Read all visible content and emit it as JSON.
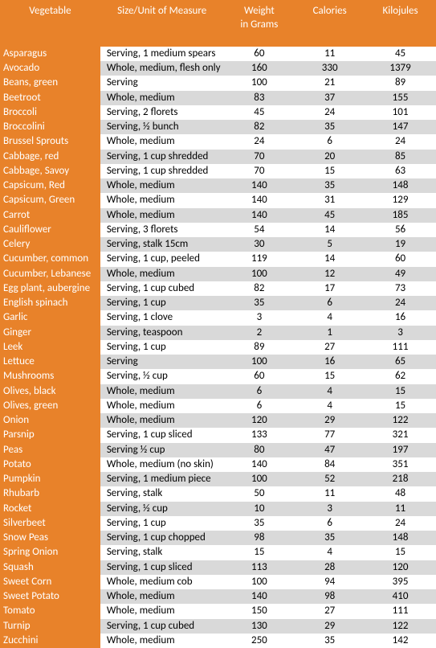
{
  "table": {
    "colors": {
      "header_bg": "#e8822a",
      "header_text": "#ffffff",
      "row_even_bg": "#ffffff",
      "row_odd_bg": "#d9d9d9",
      "cell_text": "#000000"
    },
    "columns": [
      {
        "key": "vegetable",
        "label": "Vegetable"
      },
      {
        "key": "size",
        "label": "Size/Unit of Measure"
      },
      {
        "key": "weight",
        "label": "Weight\nin Grams"
      },
      {
        "key": "calories",
        "label": "Calories"
      },
      {
        "key": "kj",
        "label": "Kilojules"
      }
    ],
    "rows": [
      {
        "vegetable": "Asparagus",
        "size": "Serving, 1 medium spears",
        "weight": "60",
        "calories": "11",
        "kj": "45"
      },
      {
        "vegetable": "Avocado",
        "size": "Whole, medium, flesh only",
        "weight": "160",
        "calories": "330",
        "kj": "1379"
      },
      {
        "vegetable": "Beans, green",
        "size": "Serving",
        "weight": "100",
        "calories": "21",
        "kj": "89"
      },
      {
        "vegetable": "Beetroot",
        "size": "Whole, medium",
        "weight": "83",
        "calories": "37",
        "kj": "155"
      },
      {
        "vegetable": "Broccoli",
        "size": "Serving, 2 florets",
        "weight": "45",
        "calories": "24",
        "kj": "101"
      },
      {
        "vegetable": "Broccolini",
        "size": "Serving, ½ bunch",
        "weight": "82",
        "calories": "35",
        "kj": "147"
      },
      {
        "vegetable": "Brussel Sprouts",
        "size": "Whole, medium",
        "weight": "24",
        "calories": "6",
        "kj": "24"
      },
      {
        "vegetable": "Cabbage, red",
        "size": "Serving, 1 cup shredded",
        "weight": "70",
        "calories": "20",
        "kj": "85"
      },
      {
        "vegetable": "Cabbage, Savoy",
        "size": "Serving, 1 cup shredded",
        "weight": "70",
        "calories": "15",
        "kj": "63"
      },
      {
        "vegetable": "Capsicum, Red",
        "size": "Whole, medium",
        "weight": "140",
        "calories": "35",
        "kj": "148"
      },
      {
        "vegetable": "Capsicum, Green",
        "size": "Whole, medium",
        "weight": "140",
        "calories": "31",
        "kj": "129"
      },
      {
        "vegetable": "Carrot",
        "size": "Whole, medium",
        "weight": "140",
        "calories": "45",
        "kj": "185"
      },
      {
        "vegetable": "Cauliflower",
        "size": "Serving, 3 florets",
        "weight": "54",
        "calories": "14",
        "kj": "56"
      },
      {
        "vegetable": "Celery",
        "size": "Serving, stalk 15cm",
        "weight": "30",
        "calories": "5",
        "kj": "19"
      },
      {
        "vegetable": "Cucumber, common",
        "size": "Serving, 1 cup, peeled",
        "weight": "119",
        "calories": "14",
        "kj": "60"
      },
      {
        "vegetable": "Cucumber, Lebanese",
        "size": "Whole, medium",
        "weight": "100",
        "calories": "12",
        "kj": "49"
      },
      {
        "vegetable": "Egg plant, aubergine",
        "size": "Serving, 1 cup cubed",
        "weight": "82",
        "calories": "17",
        "kj": "73"
      },
      {
        "vegetable": "English spinach",
        "size": "Serving, 1 cup",
        "weight": "35",
        "calories": "6",
        "kj": "24"
      },
      {
        "vegetable": "Garlic",
        "size": "Serving, 1 clove",
        "weight": "3",
        "calories": "4",
        "kj": "16"
      },
      {
        "vegetable": "Ginger",
        "size": "Serving, teaspoon",
        "weight": "2",
        "calories": "1",
        "kj": "3"
      },
      {
        "vegetable": "Leek",
        "size": "Serving, 1 cup",
        "weight": "89",
        "calories": "27",
        "kj": "111"
      },
      {
        "vegetable": "Lettuce",
        "size": "Serving",
        "weight": "100",
        "calories": "16",
        "kj": "65"
      },
      {
        "vegetable": "Mushrooms",
        "size": "Serving, ½ cup",
        "weight": "60",
        "calories": "15",
        "kj": "62"
      },
      {
        "vegetable": "Olives, black",
        "size": "Whole, medium",
        "weight": "6",
        "calories": "4",
        "kj": "15"
      },
      {
        "vegetable": "Olives, green",
        "size": "Whole, medium",
        "weight": "6",
        "calories": "4",
        "kj": "15"
      },
      {
        "vegetable": "Onion",
        "size": "Whole, medium",
        "weight": "120",
        "calories": "29",
        "kj": "122"
      },
      {
        "vegetable": "Parsnip",
        "size": "Serving, 1 cup sliced",
        "weight": "133",
        "calories": "77",
        "kj": "321"
      },
      {
        "vegetable": "Peas",
        "size": "Serving ½ cup",
        "weight": "80",
        "calories": "47",
        "kj": "197"
      },
      {
        "vegetable": "Potato",
        "size": "Whole, medium (no skin)",
        "weight": "140",
        "calories": "84",
        "kj": "351"
      },
      {
        "vegetable": "Pumpkin",
        "size": "Serving, 1 medium piece",
        "weight": "100",
        "calories": "52",
        "kj": "218"
      },
      {
        "vegetable": "Rhubarb",
        "size": "Serving, stalk",
        "weight": "50",
        "calories": "11",
        "kj": "48"
      },
      {
        "vegetable": "Rocket",
        "size": "Serving, ½ cup",
        "weight": "10",
        "calories": "3",
        "kj": "11"
      },
      {
        "vegetable": "Silverbeet",
        "size": "Serving, 1 cup",
        "weight": "35",
        "calories": "6",
        "kj": "24"
      },
      {
        "vegetable": "Snow Peas",
        "size": "Serving, 1 cup chopped",
        "weight": "98",
        "calories": "35",
        "kj": "148"
      },
      {
        "vegetable": "Spring Onion",
        "size": "Serving, stalk",
        "weight": "15",
        "calories": "4",
        "kj": "15"
      },
      {
        "vegetable": "Squash",
        "size": "Serving, 1 cup sliced",
        "weight": "113",
        "calories": "28",
        "kj": "120"
      },
      {
        "vegetable": "Sweet Corn",
        "size": "Whole, medium cob",
        "weight": "100",
        "calories": "94",
        "kj": "395"
      },
      {
        "vegetable": "Sweet Potato",
        "size": "Whole, medium",
        "weight": "140",
        "calories": "98",
        "kj": "410"
      },
      {
        "vegetable": "Tomato",
        "size": "Whole, medium",
        "weight": "150",
        "calories": "27",
        "kj": "111"
      },
      {
        "vegetable": "Turnip",
        "size": "Serving, 1 cup cubed",
        "weight": "130",
        "calories": "29",
        "kj": "122"
      },
      {
        "vegetable": "Zucchini",
        "size": "Whole, medium",
        "weight": "250",
        "calories": "35",
        "kj": "142"
      }
    ]
  }
}
